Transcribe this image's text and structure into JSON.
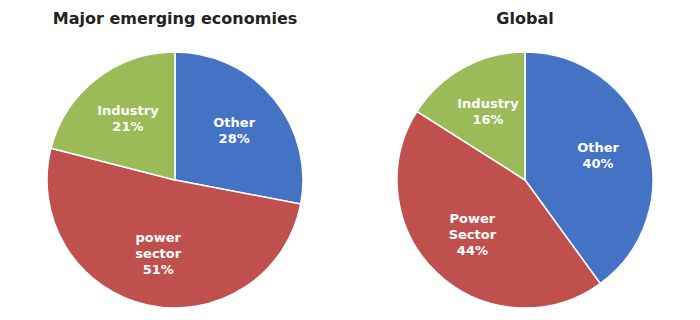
{
  "chart_data": [
    {
      "type": "pie",
      "title": "Major emerging economies",
      "categories": [
        "Other\n28%",
        "power\nsector\n51%",
        "Industry\n21%"
      ],
      "values": [
        28,
        51,
        21
      ],
      "colors": [
        "#4472C4",
        "#C0504D",
        "#9BBB59"
      ]
    },
    {
      "type": "pie",
      "title": "Global",
      "categories": [
        "Other\n40%",
        "Power\nSector\n44%",
        "Industry\n16%"
      ],
      "values": [
        40,
        44,
        16
      ],
      "colors": [
        "#4472C4",
        "#C0504D",
        "#9BBB59"
      ]
    }
  ]
}
